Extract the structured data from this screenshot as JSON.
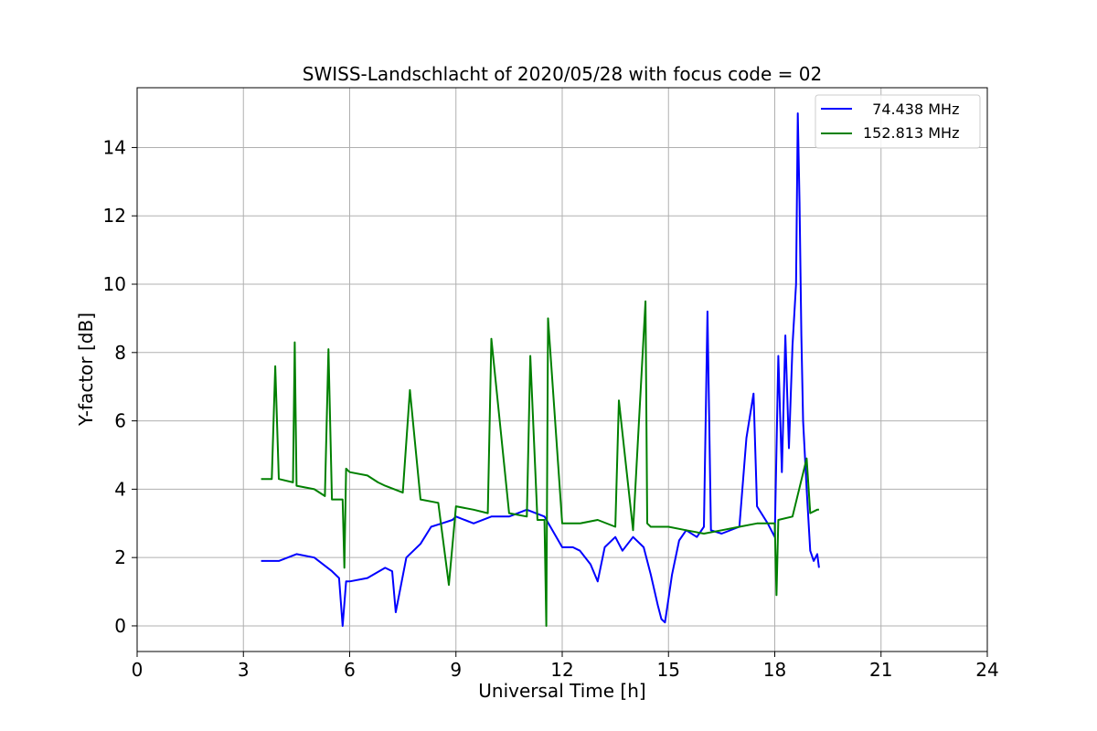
{
  "chart_data": {
    "type": "line",
    "title": "SWISS-Landschlacht of 2020/05/28 with focus code = 02",
    "xlabel": "Universal Time [h]",
    "ylabel": "Y-factor [dB]",
    "xlim": [
      0,
      24
    ],
    "ylim": [
      -0.75,
      15.75
    ],
    "x_ticks": [
      0,
      3,
      6,
      9,
      12,
      15,
      18,
      21,
      24
    ],
    "y_ticks": [
      0,
      2,
      4,
      6,
      8,
      10,
      12,
      14
    ],
    "x_tick_labels": [
      "0",
      "3",
      "6",
      "9",
      "12",
      "15",
      "18",
      "21",
      "24"
    ],
    "y_tick_labels": [
      "0",
      "2",
      "4",
      "6",
      "8",
      "10",
      "12",
      "14"
    ],
    "grid": true,
    "legend_position": "top-right",
    "series": [
      {
        "name": "  74.438 MHz",
        "color": "#0000ff",
        "x": [
          3.5,
          4.0,
          4.5,
          5.0,
          5.5,
          5.7,
          5.8,
          5.9,
          6.0,
          6.5,
          7.0,
          7.2,
          7.3,
          7.6,
          8.0,
          8.3,
          8.6,
          8.9,
          9.0,
          9.5,
          10.0,
          10.5,
          11.0,
          11.5,
          12.0,
          12.3,
          12.5,
          12.8,
          13.0,
          13.2,
          13.5,
          13.7,
          14.0,
          14.3,
          14.5,
          14.7,
          14.8,
          14.9,
          15.0,
          15.1,
          15.3,
          15.5,
          15.8,
          16.0,
          16.1,
          16.2,
          16.5,
          17.0,
          17.2,
          17.4,
          17.5,
          17.8,
          18.0,
          18.1,
          18.2,
          18.3,
          18.4,
          18.5,
          18.6,
          18.65,
          18.7,
          18.75,
          18.8,
          18.9,
          19.0,
          19.1,
          19.2,
          19.25
        ],
        "y": [
          1.9,
          1.9,
          2.1,
          2.0,
          1.6,
          1.4,
          0.0,
          1.3,
          1.3,
          1.4,
          1.7,
          1.6,
          0.4,
          2.0,
          2.4,
          2.9,
          3.0,
          3.1,
          3.2,
          3.0,
          3.2,
          3.2,
          3.4,
          3.2,
          2.3,
          2.3,
          2.2,
          1.8,
          1.3,
          2.3,
          2.6,
          2.2,
          2.6,
          2.3,
          1.5,
          0.6,
          0.2,
          0.1,
          0.8,
          1.5,
          2.5,
          2.8,
          2.6,
          2.9,
          9.2,
          2.8,
          2.7,
          2.9,
          5.5,
          6.8,
          3.5,
          3.0,
          2.6,
          7.9,
          4.5,
          8.5,
          5.2,
          8.2,
          10.0,
          15.0,
          12.4,
          8.5,
          6.0,
          4.0,
          2.2,
          1.9,
          2.1,
          1.7
        ]
      },
      {
        "name": "152.813 MHz",
        "color": "#008000",
        "x": [
          3.5,
          3.8,
          3.9,
          4.0,
          4.4,
          4.45,
          4.5,
          5.0,
          5.3,
          5.4,
          5.5,
          5.8,
          5.85,
          5.9,
          6.0,
          6.5,
          6.8,
          7.0,
          7.5,
          7.7,
          8.0,
          8.5,
          8.8,
          9.0,
          9.5,
          9.9,
          10.0,
          10.5,
          11.0,
          11.1,
          11.3,
          11.5,
          11.55,
          11.6,
          12.0,
          12.5,
          13.0,
          13.5,
          13.6,
          14.0,
          14.35,
          14.4,
          14.5,
          15.0,
          15.5,
          16.0,
          16.5,
          17.0,
          17.5,
          18.0,
          18.05,
          18.1,
          18.5,
          18.9,
          19.0,
          19.2,
          19.25
        ],
        "y": [
          4.3,
          4.3,
          7.6,
          4.3,
          4.2,
          8.3,
          4.1,
          4.0,
          3.8,
          8.1,
          3.7,
          3.7,
          1.7,
          4.6,
          4.5,
          4.4,
          4.2,
          4.1,
          3.9,
          6.9,
          3.7,
          3.6,
          1.2,
          3.5,
          3.4,
          3.3,
          8.4,
          3.3,
          3.2,
          7.9,
          3.1,
          3.1,
          0.0,
          9.0,
          3.0,
          3.0,
          3.1,
          2.9,
          6.6,
          2.8,
          9.5,
          3.0,
          2.9,
          2.9,
          2.8,
          2.7,
          2.8,
          2.9,
          3.0,
          3.0,
          0.9,
          3.1,
          3.2,
          4.9,
          3.3,
          3.4,
          3.4
        ]
      }
    ]
  }
}
